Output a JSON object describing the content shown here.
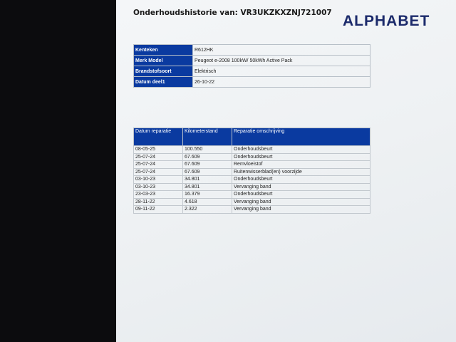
{
  "document": {
    "title": "Onderhoudshistorie van: VR3UKZKXZNJ721007",
    "logo_text": "ALPHABET",
    "brand_color": "#1b2a6b",
    "header_color": "#0a3aa0"
  },
  "vehicle_info": [
    {
      "label": "Kenteken",
      "value": "R612HK"
    },
    {
      "label": "Merk Model",
      "value": "Peugeot e-2008 100kW/ 50kWh Active Pack"
    },
    {
      "label": "Brandstofsoort",
      "value": "Elektrisch"
    },
    {
      "label": "Datum deel1",
      "value": "26-10-22"
    }
  ],
  "history": {
    "headers": [
      "Datum reparatie",
      "Kilometerstand",
      "Reparatie omschrijving"
    ],
    "rows": [
      [
        "08-05-25",
        "100.550",
        "Onderhoudsbeurt"
      ],
      [
        "25-07-24",
        "67.609",
        "Onderhoudsbeurt"
      ],
      [
        "25-07-24",
        "67.609",
        "Remvloeistof"
      ],
      [
        "25-07-24",
        "67.609",
        "Ruitenwisserblad(en) voorzijde"
      ],
      [
        "03-10-23",
        "34.801",
        "Onderhoudsbeurt"
      ],
      [
        "03-10-23",
        "34.801",
        "Vervanging band"
      ],
      [
        "23-03-23",
        "16.379",
        "Onderhoudsbeurt"
      ],
      [
        "28-11-22",
        "4.618",
        "Vervanging band"
      ],
      [
        "09-11-22",
        "2.322",
        "Vervanging band"
      ]
    ]
  }
}
